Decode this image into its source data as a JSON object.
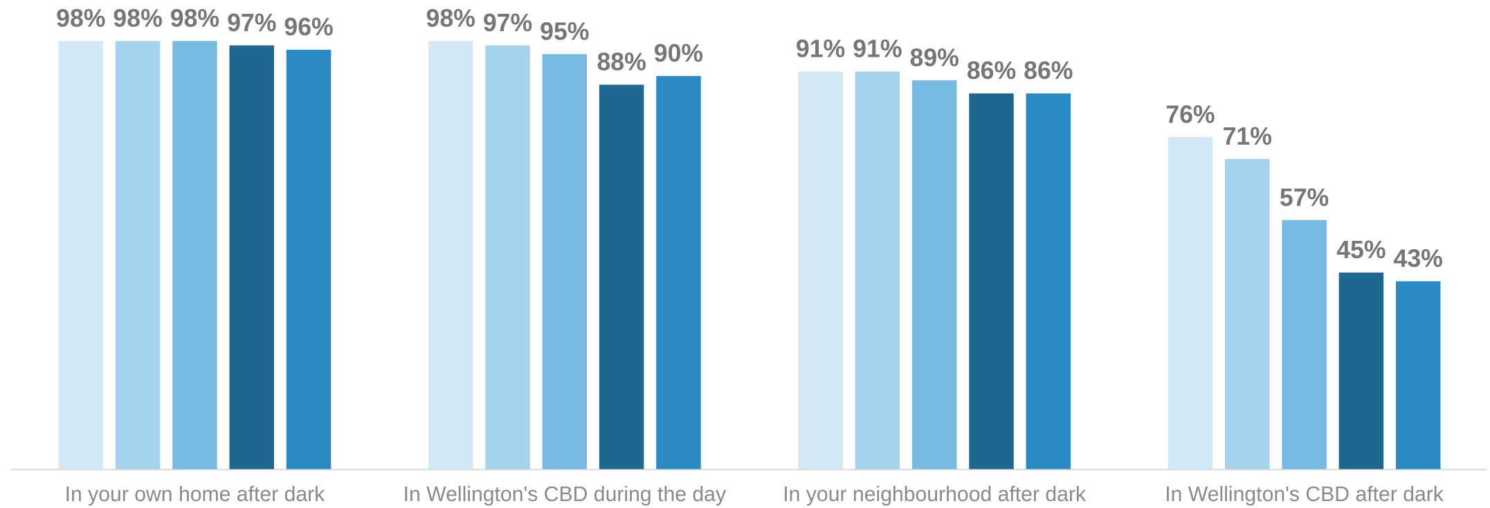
{
  "chart_data": {
    "type": "bar",
    "categories": [
      "In your own home after dark",
      "In Wellington's CBD during the day",
      "In your neighbourhood after dark",
      "In Wellington's CBD after dark"
    ],
    "series": [
      {
        "color": "#d2e8f5",
        "values": [
          98,
          98,
          91,
          76
        ],
        "value_labels": [
          "98%",
          "98%",
          "91%",
          "76%"
        ]
      },
      {
        "color": "#a5d2ec",
        "values": [
          98,
          97,
          91,
          71
        ],
        "value_labels": [
          "98%",
          "97%",
          "91%",
          "71%"
        ]
      },
      {
        "color": "#77bbe3",
        "values": [
          98,
          95,
          89,
          57
        ],
        "value_labels": [
          "98%",
          "95%",
          "89%",
          "57%"
        ]
      },
      {
        "color": "#1e6790",
        "values": [
          97,
          88,
          86,
          45
        ],
        "value_labels": [
          "97%",
          "88%",
          "86%",
          "45%"
        ]
      },
      {
        "color": "#2a8ac3",
        "values": [
          96,
          90,
          86,
          43
        ],
        "value_labels": [
          "96%",
          "90%",
          "86%",
          "43%"
        ]
      }
    ],
    "ylim": [
      0,
      100
    ]
  }
}
